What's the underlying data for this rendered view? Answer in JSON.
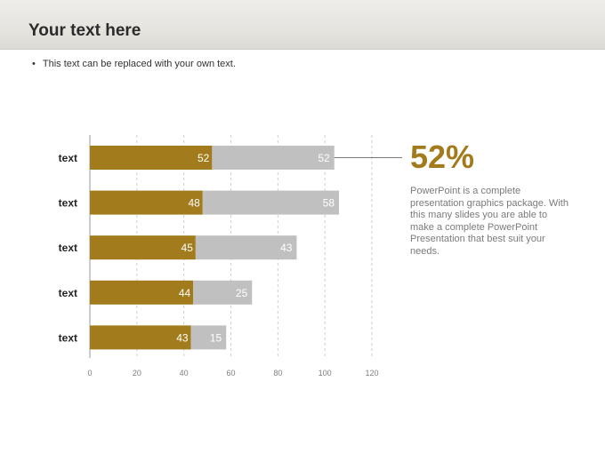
{
  "slide": {
    "title": "Your text here",
    "bullet": "This text can be replaced with your own text."
  },
  "callout": {
    "percent": "52%",
    "description": "PowerPoint is a complete presentation graphics package. With this many slides you are able to make a complete PowerPoint Presentation that best suit your needs."
  },
  "chart_data": {
    "type": "bar",
    "orientation": "horizontal",
    "stacked": true,
    "categories": [
      "text",
      "text",
      "text",
      "text",
      "text"
    ],
    "series": [
      {
        "values": [
          52,
          48,
          45,
          44,
          43
        ],
        "color": "#a27c1c"
      },
      {
        "values": [
          52,
          58,
          43,
          25,
          15
        ],
        "color": "#c0c0c0"
      }
    ],
    "xlim": [
      0,
      120
    ],
    "xticks": [
      0,
      20,
      40,
      60,
      80,
      100,
      120
    ],
    "grid": "vertical-dashed",
    "data_labels": true
  },
  "colors": {
    "accent": "#a27c1c",
    "secondary": "#c0c0c0",
    "title": "#2b2b2b"
  }
}
